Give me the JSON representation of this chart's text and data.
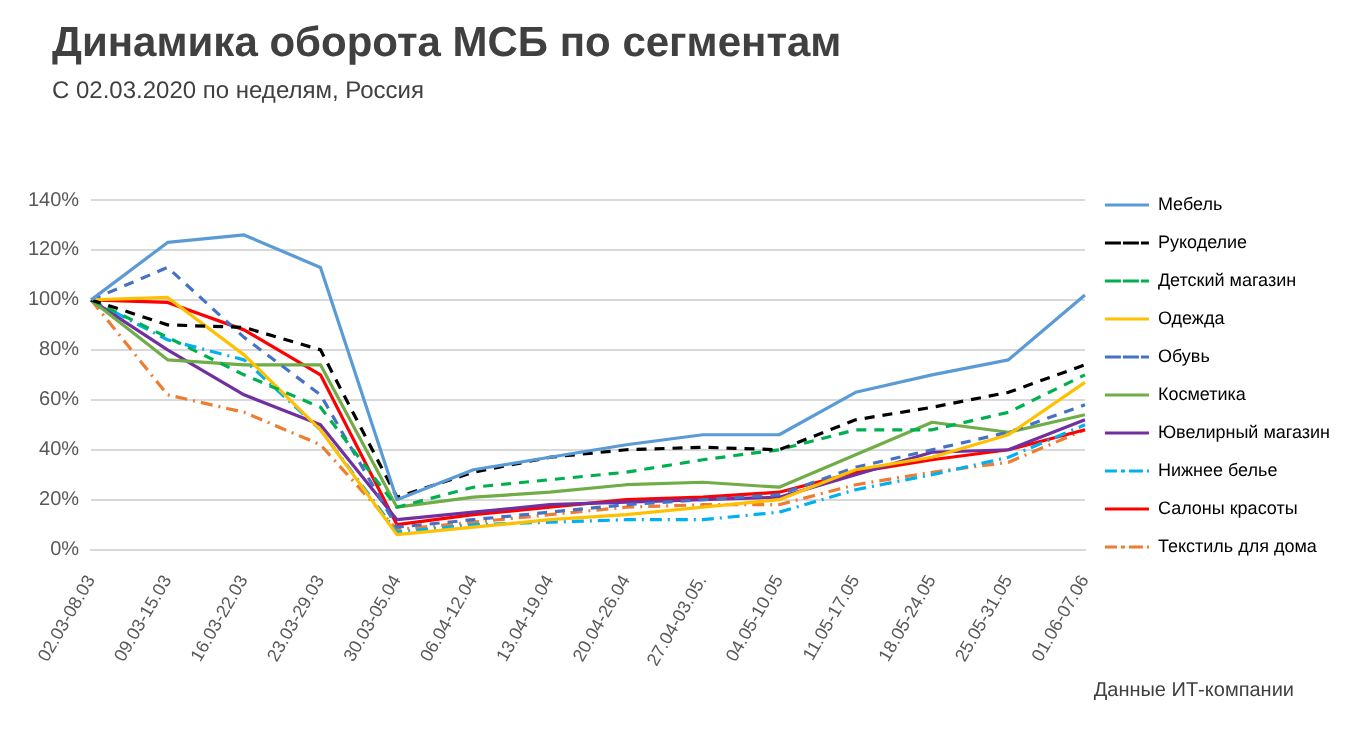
{
  "chart_data": {
    "type": "line",
    "title": "Динамика оборота МСБ по сегментам",
    "subtitle": "С 02.03.2020 по неделям, Россия",
    "categories": [
      "02.03-08.03",
      "09.03-15.03",
      "16.03-22.03",
      "23.03-29.03",
      "30.03-05.04",
      "06.04-12.04",
      "13.04-19.04",
      "20.04-26.04",
      "27.04-03.05.",
      "04.05-10.05",
      "11.05-17.05",
      "18.05-24.05",
      "25.05-31.05",
      "01.06-07.06"
    ],
    "series": [
      {
        "name": "Мебель",
        "color": "#5b9bd5",
        "line_style": "solid",
        "values": [
          100,
          123,
          126,
          113,
          20,
          32,
          37,
          42,
          46,
          46,
          63,
          70,
          76,
          102
        ]
      },
      {
        "name": "Рукоделие",
        "color": "#000000",
        "line_style": "dashed",
        "values": [
          100,
          90,
          89,
          80,
          21,
          31,
          37,
          40,
          41,
          40,
          52,
          57,
          63,
          74
        ]
      },
      {
        "name": "Детский магазин",
        "color": "#00b050",
        "line_style": "dashed",
        "values": [
          100,
          85,
          70,
          57,
          17,
          25,
          28,
          31,
          36,
          40,
          48,
          48,
          55,
          70
        ]
      },
      {
        "name": "Одежда",
        "color": "#ffc000",
        "line_style": "solid",
        "values": [
          100,
          101,
          78,
          48,
          6,
          9,
          12,
          14,
          17,
          20,
          32,
          37,
          46,
          67
        ]
      },
      {
        "name": "Обувь",
        "color": "#4472c4",
        "line_style": "dashed",
        "values": [
          100,
          113,
          85,
          62,
          9,
          12,
          15,
          18,
          20,
          22,
          33,
          40,
          47,
          58
        ]
      },
      {
        "name": "Косметика",
        "color": "#70ad47",
        "line_style": "solid",
        "values": [
          100,
          76,
          74,
          74,
          17,
          21,
          23,
          26,
          27,
          25,
          38,
          51,
          47,
          54
        ]
      },
      {
        "name": "Ювелирный магазин",
        "color": "#7030a0",
        "line_style": "solid",
        "values": [
          100,
          80,
          62,
          50,
          12,
          15,
          18,
          19,
          20,
          21,
          30,
          39,
          40,
          52
        ]
      },
      {
        "name": "Нижнее белье",
        "color": "#00b0f0",
        "line_style": "dotted",
        "values": [
          100,
          84,
          76,
          48,
          7,
          10,
          11,
          12,
          12,
          15,
          24,
          30,
          37,
          50
        ]
      },
      {
        "name": "Салоны красоты",
        "color": "#ff0000",
        "line_style": "solid",
        "values": [
          100,
          99,
          88,
          70,
          10,
          14,
          17,
          20,
          21,
          23,
          31,
          36,
          40,
          48
        ]
      },
      {
        "name": "Текстиль для дома",
        "color": "#ed7d31",
        "line_style": "dotted",
        "values": [
          100,
          62,
          55,
          42,
          8,
          11,
          14,
          17,
          18,
          18,
          26,
          31,
          35,
          48
        ]
      }
    ],
    "ylim": [
      0,
      140
    ],
    "yticks": [
      {
        "value": 0,
        "label": "0%"
      },
      {
        "value": 20,
        "label": "20%"
      },
      {
        "value": 40,
        "label": "40%"
      },
      {
        "value": 60,
        "label": "60%"
      },
      {
        "value": 80,
        "label": "80%"
      },
      {
        "value": 100,
        "label": "100%"
      },
      {
        "value": 120,
        "label": "120%"
      },
      {
        "value": 140,
        "label": "140%"
      }
    ],
    "grid": "y",
    "legend": "right",
    "marker": "none",
    "annotations": [
      "Данные ИТ-компании"
    ]
  }
}
